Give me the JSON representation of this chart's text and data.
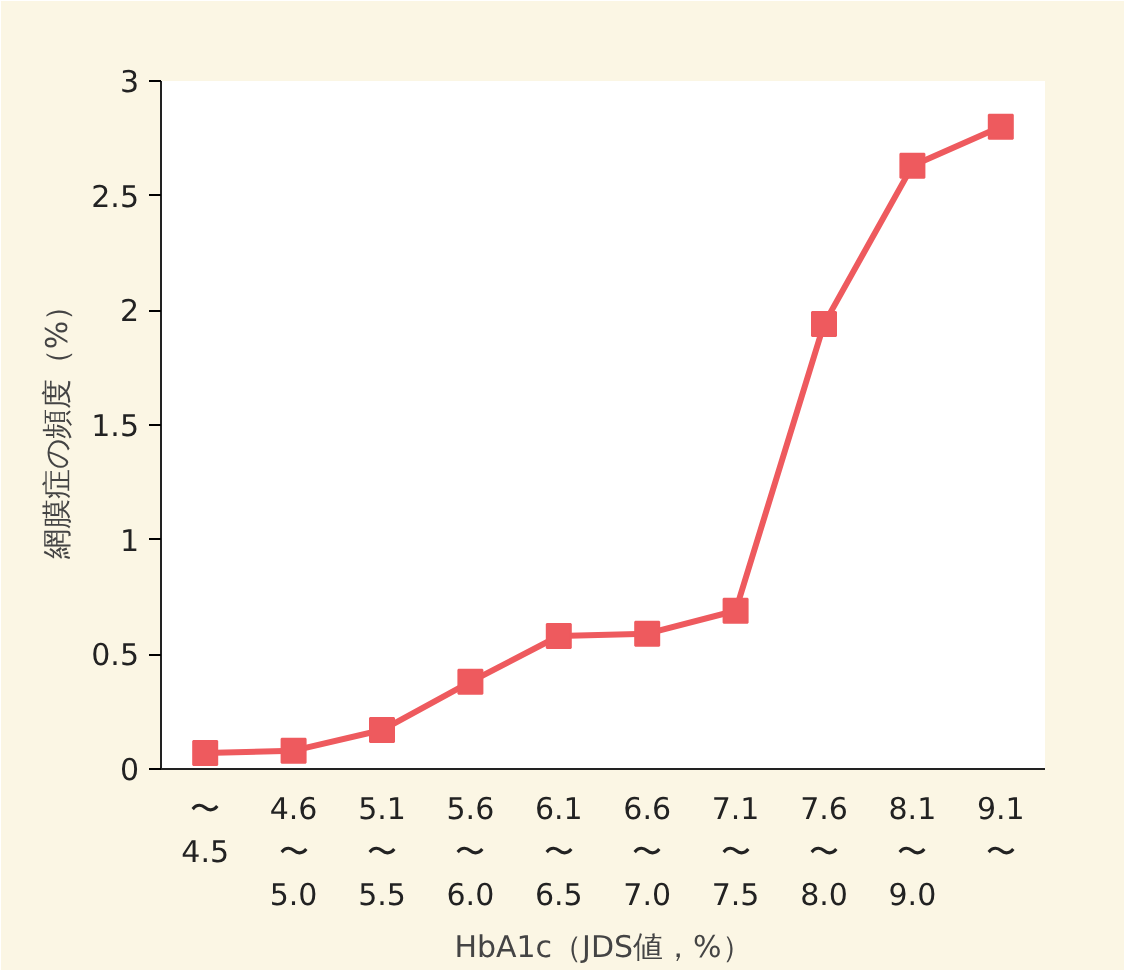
{
  "chart_data": {
    "type": "line",
    "xlabel": "HbA1c（JDS値，%）",
    "ylabel": "網膜症の頻度（%）",
    "categories": [
      "〜\n4.5",
      "4.6\n〜\n5.0",
      "5.1\n〜\n5.5",
      "5.6\n〜\n6.0",
      "6.1\n〜\n6.5",
      "6.6\n〜\n7.0",
      "7.1\n〜\n7.5",
      "7.6\n〜\n8.0",
      "8.1\n〜\n9.0",
      "9.1\n〜"
    ],
    "series": [
      {
        "color": "#ee5a5e",
        "values": [
          0.07,
          0.08,
          0.17,
          0.38,
          0.58,
          0.59,
          0.69,
          1.94,
          2.63,
          2.8
        ]
      }
    ],
    "ylim": [
      0,
      3
    ],
    "yticks": [
      0,
      0.5,
      1,
      1.5,
      2,
      2.5,
      3
    ],
    "grid": false,
    "marker": "square",
    "line_style": "solid"
  }
}
